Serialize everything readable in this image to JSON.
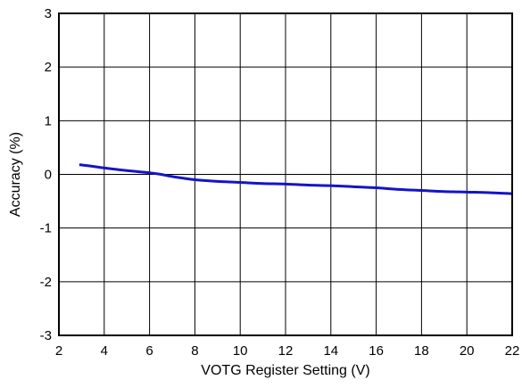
{
  "chart_data": {
    "type": "line",
    "xlabel": "VOTG Register Setting (V)",
    "ylabel": "Accuracy (%)",
    "xlim": [
      2,
      22
    ],
    "ylim": [
      -3,
      3
    ],
    "x_ticks": [
      2,
      4,
      6,
      8,
      10,
      12,
      14,
      16,
      18,
      20,
      22
    ],
    "y_ticks": [
      3,
      2,
      1,
      0,
      -1,
      -2,
      -3
    ],
    "x_tick_labels": [
      "2",
      "4",
      "6",
      "8",
      "10",
      "12",
      "14",
      "16",
      "18",
      "20",
      "22"
    ],
    "y_tick_labels": [
      "3",
      "2",
      "1",
      "0",
      "-1",
      "-2",
      "-3"
    ],
    "grid": true,
    "series": [
      {
        "color": "#1414c8",
        "x": [
          2.9,
          3.5,
          4.0,
          5.0,
          6.0,
          6.5,
          7.0,
          8.0,
          9.0,
          10.0,
          11.0,
          12.0,
          13.0,
          14.0,
          15.0,
          16.0,
          17.0,
          18.0,
          19.0,
          20.0,
          21.0,
          22.0
        ],
        "y": [
          0.18,
          0.15,
          0.12,
          0.07,
          0.03,
          0.0,
          -0.04,
          -0.1,
          -0.13,
          -0.15,
          -0.17,
          -0.18,
          -0.2,
          -0.21,
          -0.23,
          -0.25,
          -0.28,
          -0.3,
          -0.32,
          -0.33,
          -0.34,
          -0.36
        ]
      }
    ]
  }
}
